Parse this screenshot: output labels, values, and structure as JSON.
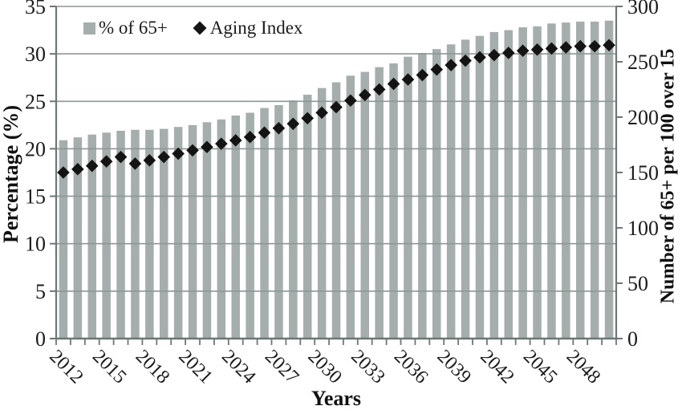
{
  "chart_data": {
    "type": "bar",
    "title": "",
    "categories": [
      2012,
      2013,
      2014,
      2015,
      2016,
      2017,
      2018,
      2019,
      2020,
      2021,
      2022,
      2023,
      2024,
      2025,
      2026,
      2027,
      2028,
      2029,
      2030,
      2031,
      2032,
      2033,
      2034,
      2035,
      2036,
      2037,
      2038,
      2039,
      2040,
      2041,
      2042,
      2043,
      2044,
      2045,
      2046,
      2047,
      2048,
      2049,
      2050
    ],
    "series": [
      {
        "name": "% of 65+",
        "type": "bar",
        "axis": "left",
        "values": [
          20.9,
          21.2,
          21.5,
          21.7,
          21.9,
          22.0,
          22.0,
          22.1,
          22.3,
          22.5,
          22.8,
          23.1,
          23.5,
          23.8,
          24.3,
          24.6,
          25.1,
          25.7,
          26.4,
          27.0,
          27.7,
          28.1,
          28.6,
          29.0,
          29.7,
          30.1,
          30.5,
          31.0,
          31.5,
          31.9,
          32.3,
          32.5,
          32.8,
          32.9,
          33.2,
          33.3,
          33.4,
          33.4,
          33.5
        ]
      },
      {
        "name": "Aging Index",
        "type": "scatter",
        "axis": "right",
        "values": [
          150,
          153,
          156,
          160,
          164,
          158,
          161,
          164,
          167,
          170,
          173,
          176,
          179,
          182,
          186,
          190,
          194,
          199,
          204,
          209,
          215,
          220,
          225,
          230,
          234,
          238,
          243,
          247,
          251,
          254,
          256,
          258,
          260,
          261,
          262,
          263,
          264,
          264,
          265
        ]
      }
    ],
    "xlabel": "Years",
    "ylabel_left": "Percentage (%)",
    "ylabel_right": "Number of 65+ per 100 over 15",
    "ylim_left": [
      0,
      35
    ],
    "ylim_right": [
      0,
      300
    ],
    "left_tick_step": 5,
    "right_tick_step": 50,
    "x_tick_labels": [
      "2012",
      "2015",
      "2018",
      "2021",
      "2024",
      "2027",
      "2030",
      "2033",
      "2036",
      "2039",
      "2042",
      "2045",
      "2048"
    ],
    "grid": true,
    "legend_position": "top"
  },
  "axes": {
    "left_title": "Percentage (%)",
    "right_title": "Number of 65+ per 100 over 15",
    "x_title": "Years",
    "left_ticks": [
      "0",
      "5",
      "10",
      "15",
      "20",
      "25",
      "30",
      "35"
    ],
    "right_ticks": [
      "0",
      "50",
      "100",
      "150",
      "200",
      "250",
      "300"
    ]
  },
  "legend": {
    "items": [
      {
        "label": "% of 65+",
        "marker": "square-icon"
      },
      {
        "label": "Aging Index",
        "marker": "diamond-icon"
      }
    ]
  },
  "colors": {
    "bar": "#a5aeac",
    "marker": "#141414",
    "grid": "#8d9795",
    "axis": "#6d7876",
    "text": "#1b1b1b",
    "background": "#ffffff"
  }
}
